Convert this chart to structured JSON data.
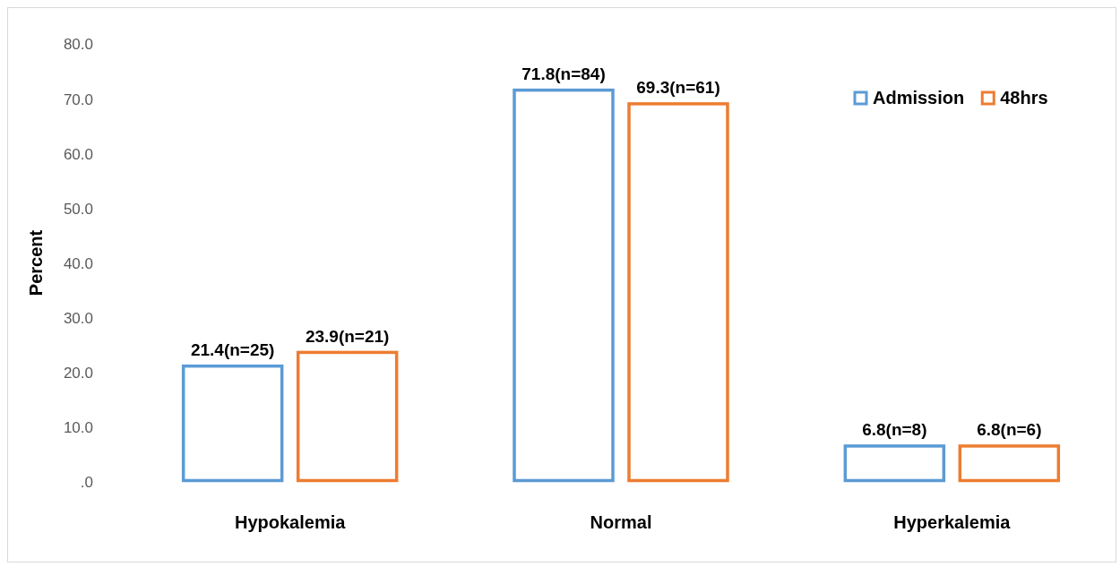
{
  "chart_data": {
    "type": "bar",
    "ylabel": "Percent",
    "categories": [
      "Hypokalemia",
      "Normal",
      "Hyperkalemia"
    ],
    "series": [
      {
        "name": "Admission",
        "color": "#5b9bd5",
        "values": [
          21.4,
          71.8,
          6.8
        ],
        "value_labels": [
          "21.4(n=25)",
          "71.8(n=84)",
          "6.8(n=8)"
        ]
      },
      {
        "name": "48hrs",
        "color": "#ed7d31",
        "values": [
          23.9,
          69.3,
          6.8
        ],
        "value_labels": [
          "23.9(n=21)",
          "69.3(n=61)",
          "6.8(n=6)"
        ]
      }
    ],
    "ylim": [
      0,
      80
    ],
    "yticks": [
      {
        "value": 0,
        "label": ".0"
      },
      {
        "value": 10,
        "label": "10.0"
      },
      {
        "value": 20,
        "label": "20.0"
      },
      {
        "value": 30,
        "label": "30.0"
      },
      {
        "value": 40,
        "label": "40.0"
      },
      {
        "value": 50,
        "label": "50.0"
      },
      {
        "value": 60,
        "label": "60.0"
      },
      {
        "value": 70,
        "label": "70.0"
      },
      {
        "value": 80,
        "label": "80.0"
      }
    ],
    "grid": false,
    "legend": "top right"
  }
}
